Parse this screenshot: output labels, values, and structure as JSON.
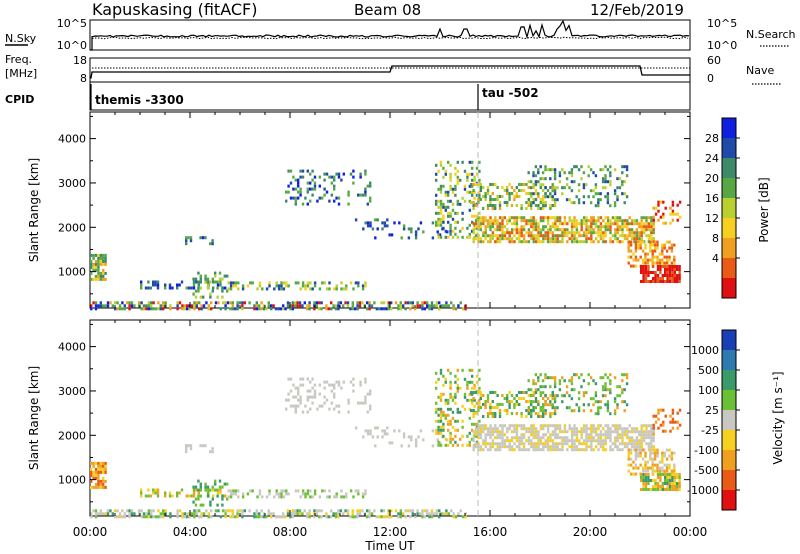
{
  "header": {
    "station": "Kapuskasing (fitACF)",
    "beam": "Beam 08",
    "date": "12/Feb/2019"
  },
  "nsky_panel": {
    "left_label": "N.Sky",
    "left_ticks": [
      "10^5",
      "10^0"
    ],
    "right_ticks": [
      "10^5",
      "10^0"
    ],
    "right_label": "N.Search"
  },
  "freq_panel": {
    "left_label_1": "Freq.",
    "left_label_2": "[MHz]",
    "left_ticks": [
      "18",
      "8"
    ],
    "right_ticks": [
      "60",
      "0"
    ],
    "right_label": "Nave"
  },
  "cpid_panel": {
    "label": "CPID",
    "mode_1": "themis -3300",
    "mode_2": "tau -502"
  },
  "power_panel": {
    "ylabel": "Slant Range [km]",
    "y_ticks": [
      "4000",
      "3000",
      "2000",
      "1000"
    ],
    "colorbar_label": "Power [dB]",
    "colorbar_ticks": [
      "28",
      "24",
      "20",
      "16",
      "12",
      "8",
      "4"
    ],
    "colors": [
      "#1020e0",
      "#1f4aa8",
      "#3d8a6a",
      "#57a845",
      "#b9d030",
      "#f5d020",
      "#f0a020",
      "#e85a15",
      "#e01010"
    ]
  },
  "velocity_panel": {
    "ylabel": "Slant Range [km]",
    "y_ticks": [
      "4000",
      "3000",
      "2000",
      "1000"
    ],
    "colorbar_label": "Velocity [m s⁻¹]",
    "colorbar_ticks": [
      "1000",
      "500",
      "100",
      "25",
      "-25",
      "-100",
      "-500",
      "-1000"
    ],
    "colors": [
      "#1a3fb5",
      "#2d7ab0",
      "#3a9a6a",
      "#6cc035",
      "#c8c8c0",
      "#f5d020",
      "#f0a020",
      "#e85a15",
      "#e01010"
    ]
  },
  "time_axis": {
    "ticks": [
      "00:00",
      "04:00",
      "08:00",
      "12:00",
      "16:00",
      "20:00",
      "00:00"
    ],
    "label": "Time UT"
  }
}
